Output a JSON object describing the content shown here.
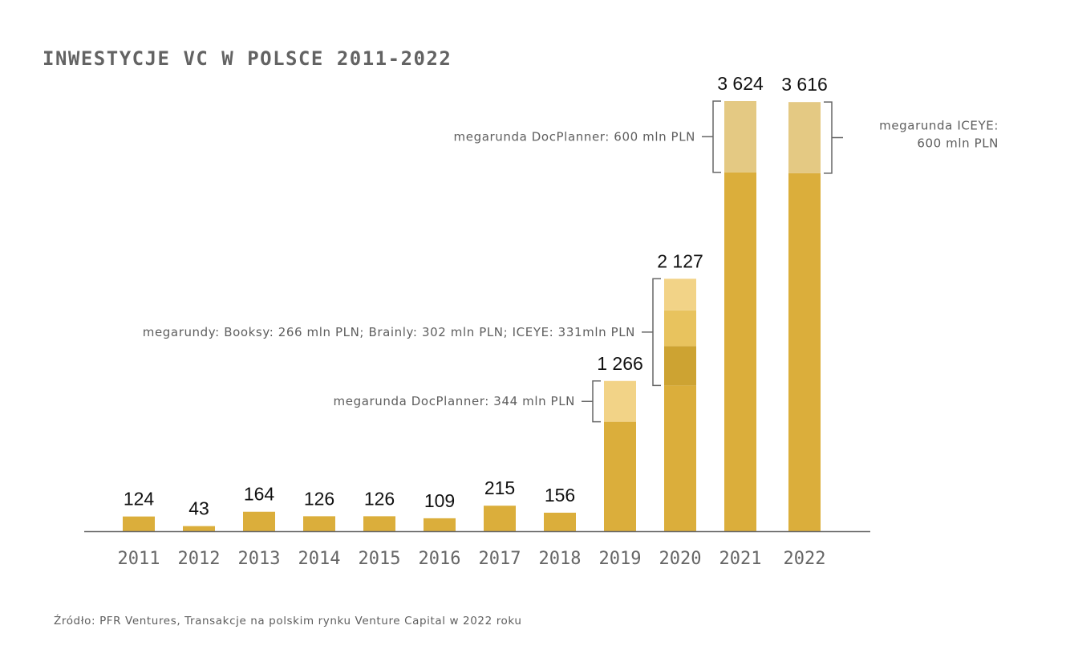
{
  "chart_data": {
    "type": "bar",
    "title": "INWESTYCJE VC W POLSCE 2011-2022",
    "xlabel": "",
    "ylabel": "",
    "ylim": [
      0,
      3700
    ],
    "grid": false,
    "categories": [
      "2011",
      "2012",
      "2013",
      "2014",
      "2015",
      "2016",
      "2017",
      "2018",
      "2019",
      "2020",
      "2021",
      "2022"
    ],
    "values": [
      124,
      43,
      164,
      126,
      126,
      109,
      215,
      156,
      1266,
      2127,
      3624,
      3616
    ],
    "value_labels": [
      "124",
      "43",
      "164",
      "126",
      "126",
      "109",
      "215",
      "156",
      "1 266",
      "2 127",
      "3 624",
      "3 616"
    ],
    "megarounds": [
      {
        "year": "2019",
        "segments": [
          {
            "name": "DocPlanner",
            "value": 344
          }
        ],
        "label": [
          "megarunda DocPlanner: 344 mln PLN"
        ],
        "side": "left"
      },
      {
        "year": "2020",
        "segments": [
          {
            "name": "ICEYE",
            "value": 331
          },
          {
            "name": "Brainly",
            "value": 302
          },
          {
            "name": "Booksy",
            "value": 266
          }
        ],
        "label": [
          "megarundy: Booksy: 266 mln PLN; Brainly: 302 mln PLN; ICEYE: 331mln PLN"
        ],
        "side": "left"
      },
      {
        "year": "2021",
        "segments": [
          {
            "name": "DocPlanner",
            "value": 600
          }
        ],
        "label": [
          "megarunda DocPlanner: 600 mln PLN"
        ],
        "side": "left"
      },
      {
        "year": "2022",
        "segments": [
          {
            "name": "ICEYE",
            "value": 600
          }
        ],
        "label": [
          "megarunda ICEYE:",
          "600 mln PLN"
        ],
        "side": "right"
      }
    ],
    "source": "Źródło: PFR Ventures, Transakcje na polskim rynku Venture Capital w 2022 roku",
    "colors": {
      "base": "#dbae3b",
      "mega_2019": "#f2d387",
      "mega_2020": [
        "#cda332",
        "#e8c35e",
        "#f2d387"
      ],
      "mega_2021_2022": "#e4c983",
      "axis": "#666666",
      "bracket": "#666666"
    }
  }
}
